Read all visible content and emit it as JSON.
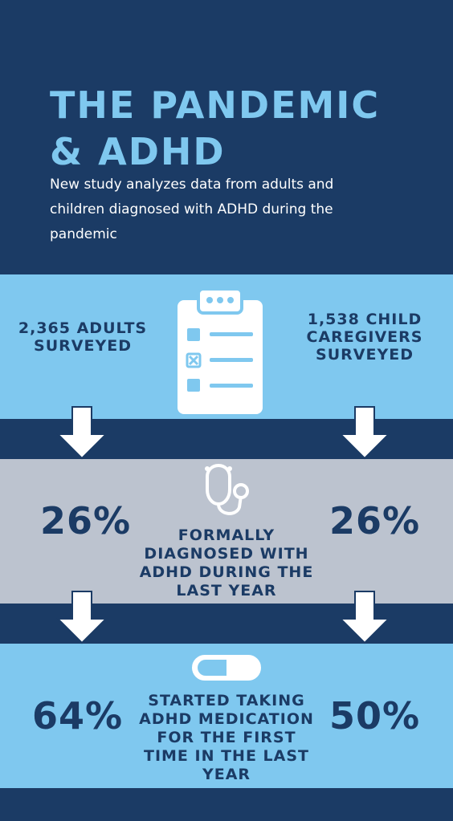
{
  "header": {
    "title_line1": "THE PANDEMIC",
    "title_line2": "& ADHD",
    "subtitle": "New study analyzes data from adults and children diagnosed with ADHD during the pandemic"
  },
  "survey": {
    "adults_label": "2,365 ADULTS SURVEYED",
    "caregivers_label": "1,538 CHILD CAREGIVERS SURVEYED",
    "icon": "clipboard-checklist-icon"
  },
  "diagnosis": {
    "adults_percent": "26%",
    "children_percent": "26%",
    "caption": "FORMALLY DIAGNOSED WITH ADHD DURING THE LAST YEAR",
    "icon": "stethoscope-icon"
  },
  "medication": {
    "adults_percent": "64%",
    "children_percent": "50%",
    "caption": "STARTED TAKING ADHD MEDICATION FOR THE FIRST TIME IN THE LAST YEAR",
    "icon": "pill-capsule-icon"
  },
  "colors": {
    "navy": "#1b3b65",
    "light_blue": "#7fc8ef",
    "gray": "#bcc3cf",
    "white": "#ffffff"
  }
}
